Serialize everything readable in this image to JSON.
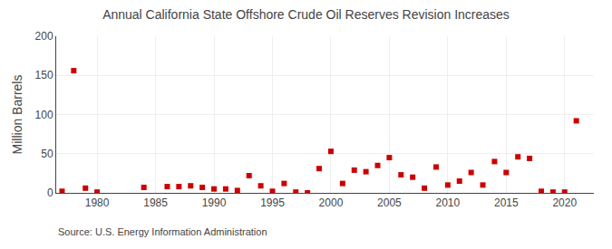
{
  "chart_data": {
    "type": "scatter",
    "title": "Annual California State Offshore Crude Oil Reserves Revision Increases",
    "ylabel": "Million Barrels",
    "annotations": [
      "Source: U.S. Energy Information Administration"
    ],
    "x": [
      1977,
      1978,
      1979,
      1980,
      1984,
      1986,
      1987,
      1988,
      1989,
      1990,
      1991,
      1992,
      1993,
      1994,
      1995,
      1996,
      1997,
      1998,
      1999,
      2000,
      2001,
      2002,
      2003,
      2004,
      2005,
      2006,
      2007,
      2008,
      2009,
      2010,
      2011,
      2012,
      2013,
      2014,
      2015,
      2016,
      2017,
      2018,
      2019,
      2020,
      2021
    ],
    "values": [
      2,
      156,
      6,
      1,
      7,
      8,
      8,
      9,
      7,
      5,
      5,
      3,
      22,
      9,
      2,
      12,
      1,
      0,
      31,
      53,
      12,
      29,
      27,
      35,
      45,
      23,
      20,
      6,
      33,
      10,
      15,
      26,
      10,
      40,
      26,
      46,
      44,
      2,
      1,
      1,
      92
    ],
    "color": "#cc0000",
    "marker": "square",
    "xlim": [
      1976.5,
      2022.5
    ],
    "ylim": [
      0,
      200
    ],
    "xticks": [
      1980,
      1985,
      1990,
      1995,
      2000,
      2005,
      2010,
      2015,
      2020
    ],
    "yticks": [
      0,
      50,
      100,
      150,
      200
    ],
    "grid": true
  }
}
